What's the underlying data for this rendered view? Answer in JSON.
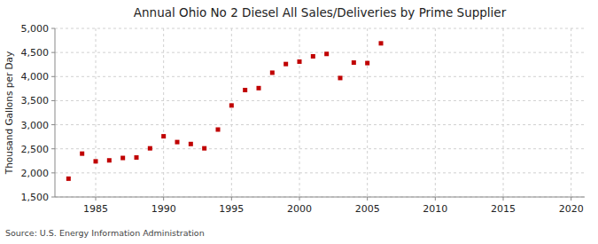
{
  "chart_data": {
    "type": "scatter",
    "title": "Annual Ohio No 2 Diesel All Sales/Deliveries by Prime Supplier",
    "ylabel": "Thousand Gallons per Day",
    "source": "Source: U.S. Energy Information Administration",
    "x": [
      1983,
      1984,
      1985,
      1986,
      1987,
      1988,
      1989,
      1990,
      1991,
      1992,
      1993,
      1994,
      1995,
      1996,
      1997,
      1998,
      1999,
      2000,
      2001,
      2002,
      2003,
      2004,
      2005,
      2006
    ],
    "values": [
      1880,
      2400,
      2240,
      2260,
      2310,
      2320,
      2510,
      2760,
      2640,
      2600,
      2510,
      2900,
      3400,
      3720,
      3760,
      4080,
      4260,
      4310,
      4420,
      4470,
      3970,
      4290,
      4280,
      4690
    ],
    "color": "#c00000",
    "marker": "square",
    "xlim": [
      1982,
      2021
    ],
    "ylim": [
      1500,
      5000
    ],
    "xticks": [
      1985,
      1990,
      1995,
      2000,
      2005,
      2010,
      2015,
      2020
    ],
    "yticks": [
      {
        "value": 1500,
        "label": "1,500"
      },
      {
        "value": 2000,
        "label": "2,000"
      },
      {
        "value": 2500,
        "label": "2,500"
      },
      {
        "value": 3000,
        "label": "3,000"
      },
      {
        "value": 3500,
        "label": "3,500"
      },
      {
        "value": 4000,
        "label": "4,000"
      },
      {
        "value": 4500,
        "label": "4,500"
      },
      {
        "value": 5000,
        "label": "5,000"
      }
    ],
    "grid": true
  }
}
